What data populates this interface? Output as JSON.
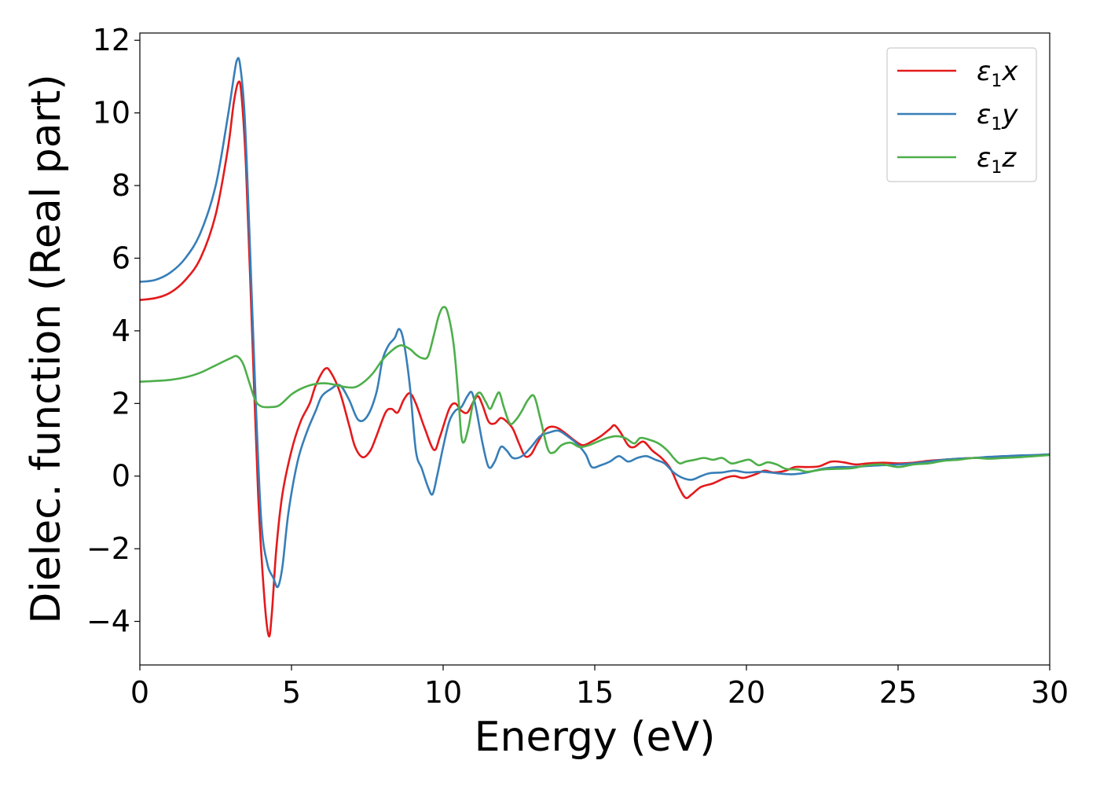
{
  "chart_data": {
    "type": "line",
    "xlabel": "Energy (eV)",
    "ylabel": "Dielec. function (Real part)",
    "xlim": [
      0,
      30
    ],
    "ylim": [
      -5.2,
      12.2
    ],
    "xticks": [
      0,
      5,
      10,
      15,
      20,
      25,
      30
    ],
    "xtick_labels": [
      "0",
      "5",
      "10",
      "15",
      "20",
      "25",
      "30"
    ],
    "yticks": [
      -4,
      -2,
      0,
      2,
      4,
      6,
      8,
      10,
      12
    ],
    "ytick_labels": [
      "−4",
      "−2",
      "0",
      "2",
      "4",
      "6",
      "8",
      "10",
      "12"
    ],
    "grid": false,
    "legend_position": "top-right",
    "series": [
      {
        "name": "ε1x",
        "legend_base": "ε",
        "legend_sub": "1",
        "legend_var": "x",
        "color": "#e41a1c",
        "points": [
          [
            0,
            4.85
          ],
          [
            0.5,
            4.9
          ],
          [
            1,
            5.05
          ],
          [
            1.5,
            5.4
          ],
          [
            2,
            6.0
          ],
          [
            2.5,
            7.2
          ],
          [
            2.9,
            9.0
          ],
          [
            3.1,
            10.3
          ],
          [
            3.25,
            10.85
          ],
          [
            3.35,
            10.5
          ],
          [
            3.5,
            8.5
          ],
          [
            3.7,
            4.0
          ],
          [
            3.9,
            -0.5
          ],
          [
            4.1,
            -3.3
          ],
          [
            4.25,
            -4.4
          ],
          [
            4.35,
            -3.8
          ],
          [
            4.5,
            -2.0
          ],
          [
            4.7,
            -0.5
          ],
          [
            5,
            0.7
          ],
          [
            5.3,
            1.5
          ],
          [
            5.6,
            2.0
          ],
          [
            5.8,
            2.5
          ],
          [
            6.1,
            2.95
          ],
          [
            6.3,
            2.85
          ],
          [
            6.6,
            2.3
          ],
          [
            6.9,
            1.4
          ],
          [
            7.1,
            0.8
          ],
          [
            7.35,
            0.52
          ],
          [
            7.6,
            0.7
          ],
          [
            7.8,
            1.1
          ],
          [
            8.1,
            1.75
          ],
          [
            8.3,
            1.85
          ],
          [
            8.5,
            1.75
          ],
          [
            8.7,
            2.1
          ],
          [
            8.9,
            2.28
          ],
          [
            9.1,
            2.0
          ],
          [
            9.4,
            1.3
          ],
          [
            9.7,
            0.72
          ],
          [
            9.9,
            1.1
          ],
          [
            10.2,
            1.85
          ],
          [
            10.4,
            2.0
          ],
          [
            10.6,
            1.8
          ],
          [
            10.8,
            1.75
          ],
          [
            11.0,
            2.05
          ],
          [
            11.15,
            2.2
          ],
          [
            11.3,
            1.95
          ],
          [
            11.5,
            1.5
          ],
          [
            11.7,
            1.45
          ],
          [
            11.9,
            1.6
          ],
          [
            12.1,
            1.5
          ],
          [
            12.3,
            1.3
          ],
          [
            12.5,
            0.9
          ],
          [
            12.7,
            0.55
          ],
          [
            12.9,
            0.6
          ],
          [
            13.1,
            0.9
          ],
          [
            13.4,
            1.3
          ],
          [
            13.7,
            1.35
          ],
          [
            14.0,
            1.2
          ],
          [
            14.3,
            1.0
          ],
          [
            14.6,
            0.85
          ],
          [
            14.9,
            0.95
          ],
          [
            15.2,
            1.1
          ],
          [
            15.5,
            1.3
          ],
          [
            15.65,
            1.4
          ],
          [
            15.85,
            1.2
          ],
          [
            16.1,
            0.85
          ],
          [
            16.3,
            0.8
          ],
          [
            16.6,
            0.95
          ],
          [
            16.9,
            0.7
          ],
          [
            17.2,
            0.5
          ],
          [
            17.5,
            0.2
          ],
          [
            17.8,
            -0.35
          ],
          [
            18.0,
            -0.6
          ],
          [
            18.2,
            -0.5
          ],
          [
            18.5,
            -0.3
          ],
          [
            18.9,
            -0.2
          ],
          [
            19.3,
            -0.05
          ],
          [
            19.6,
            0.0
          ],
          [
            19.9,
            -0.05
          ],
          [
            20.3,
            0.05
          ],
          [
            20.6,
            0.15
          ],
          [
            20.9,
            0.1
          ],
          [
            21.3,
            0.15
          ],
          [
            21.6,
            0.25
          ],
          [
            22.0,
            0.25
          ],
          [
            22.4,
            0.27
          ],
          [
            22.8,
            0.4
          ],
          [
            23.2,
            0.38
          ],
          [
            23.6,
            0.32
          ],
          [
            24.0,
            0.35
          ],
          [
            24.5,
            0.37
          ],
          [
            25.0,
            0.35
          ],
          [
            25.5,
            0.37
          ],
          [
            26.0,
            0.42
          ],
          [
            26.5,
            0.45
          ],
          [
            27.0,
            0.48
          ],
          [
            27.5,
            0.5
          ],
          [
            28.0,
            0.52
          ],
          [
            28.5,
            0.55
          ],
          [
            29.0,
            0.55
          ],
          [
            29.5,
            0.57
          ],
          [
            30,
            0.6
          ]
        ]
      },
      {
        "name": "ε1y",
        "legend_base": "ε",
        "legend_sub": "1",
        "legend_var": "y",
        "color": "#377eb8",
        "points": [
          [
            0,
            5.35
          ],
          [
            0.5,
            5.4
          ],
          [
            1,
            5.6
          ],
          [
            1.5,
            6.0
          ],
          [
            2,
            6.7
          ],
          [
            2.5,
            8.0
          ],
          [
            2.9,
            9.9
          ],
          [
            3.1,
            11.0
          ],
          [
            3.2,
            11.45
          ],
          [
            3.3,
            11.35
          ],
          [
            3.45,
            10.0
          ],
          [
            3.6,
            7.0
          ],
          [
            3.8,
            2.5
          ],
          [
            4.0,
            -1.2
          ],
          [
            4.2,
            -2.4
          ],
          [
            4.4,
            -2.8
          ],
          [
            4.55,
            -3.05
          ],
          [
            4.7,
            -2.5
          ],
          [
            4.9,
            -1.0
          ],
          [
            5.2,
            0.4
          ],
          [
            5.5,
            1.2
          ],
          [
            5.8,
            1.8
          ],
          [
            6.0,
            2.2
          ],
          [
            6.3,
            2.4
          ],
          [
            6.6,
            2.5
          ],
          [
            6.9,
            2.1
          ],
          [
            7.2,
            1.55
          ],
          [
            7.5,
            1.65
          ],
          [
            7.8,
            2.3
          ],
          [
            8.0,
            3.2
          ],
          [
            8.2,
            3.6
          ],
          [
            8.4,
            3.8
          ],
          [
            8.55,
            4.05
          ],
          [
            8.7,
            3.7
          ],
          [
            8.9,
            2.5
          ],
          [
            9.1,
            0.7
          ],
          [
            9.3,
            0.2
          ],
          [
            9.5,
            -0.3
          ],
          [
            9.65,
            -0.5
          ],
          [
            9.8,
            0.0
          ],
          [
            10.0,
            0.8
          ],
          [
            10.2,
            1.5
          ],
          [
            10.4,
            1.8
          ],
          [
            10.6,
            1.9
          ],
          [
            10.8,
            2.2
          ],
          [
            10.95,
            2.3
          ],
          [
            11.1,
            1.8
          ],
          [
            11.3,
            0.9
          ],
          [
            11.5,
            0.25
          ],
          [
            11.7,
            0.4
          ],
          [
            11.9,
            0.8
          ],
          [
            12.1,
            0.7
          ],
          [
            12.3,
            0.5
          ],
          [
            12.6,
            0.55
          ],
          [
            12.9,
            0.8
          ],
          [
            13.2,
            1.1
          ],
          [
            13.5,
            1.2
          ],
          [
            13.8,
            1.25
          ],
          [
            14.1,
            1.1
          ],
          [
            14.4,
            0.9
          ],
          [
            14.7,
            0.6
          ],
          [
            14.9,
            0.25
          ],
          [
            15.2,
            0.3
          ],
          [
            15.5,
            0.4
          ],
          [
            15.8,
            0.55
          ],
          [
            16.1,
            0.4
          ],
          [
            16.4,
            0.5
          ],
          [
            16.7,
            0.55
          ],
          [
            17.0,
            0.45
          ],
          [
            17.3,
            0.35
          ],
          [
            17.6,
            0.1
          ],
          [
            17.9,
            -0.05
          ],
          [
            18.2,
            -0.1
          ],
          [
            18.5,
            0.0
          ],
          [
            18.8,
            0.08
          ],
          [
            19.2,
            0.1
          ],
          [
            19.6,
            0.15
          ],
          [
            20.0,
            0.1
          ],
          [
            20.5,
            0.12
          ],
          [
            21.0,
            0.08
          ],
          [
            21.5,
            0.05
          ],
          [
            22.0,
            0.1
          ],
          [
            22.5,
            0.2
          ],
          [
            23.0,
            0.25
          ],
          [
            23.5,
            0.25
          ],
          [
            24.0,
            0.28
          ],
          [
            24.5,
            0.3
          ],
          [
            25.0,
            0.32
          ],
          [
            25.5,
            0.35
          ],
          [
            26.0,
            0.4
          ],
          [
            26.5,
            0.45
          ],
          [
            27.0,
            0.48
          ],
          [
            27.5,
            0.5
          ],
          [
            28.0,
            0.53
          ],
          [
            28.5,
            0.55
          ],
          [
            29.0,
            0.57
          ],
          [
            29.5,
            0.58
          ],
          [
            30,
            0.6
          ]
        ]
      },
      {
        "name": "ε1z",
        "legend_base": "ε",
        "legend_sub": "1",
        "legend_var": "z",
        "color": "#4daf4a",
        "points": [
          [
            0,
            2.6
          ],
          [
            0.5,
            2.62
          ],
          [
            1,
            2.65
          ],
          [
            1.5,
            2.72
          ],
          [
            2,
            2.85
          ],
          [
            2.5,
            3.05
          ],
          [
            3.0,
            3.25
          ],
          [
            3.2,
            3.3
          ],
          [
            3.4,
            3.1
          ],
          [
            3.6,
            2.6
          ],
          [
            3.8,
            2.1
          ],
          [
            4.0,
            1.92
          ],
          [
            4.3,
            1.9
          ],
          [
            4.6,
            1.95
          ],
          [
            5.0,
            2.25
          ],
          [
            5.3,
            2.4
          ],
          [
            5.6,
            2.5
          ],
          [
            5.9,
            2.55
          ],
          [
            6.2,
            2.55
          ],
          [
            6.5,
            2.5
          ],
          [
            6.8,
            2.45
          ],
          [
            7.1,
            2.45
          ],
          [
            7.4,
            2.6
          ],
          [
            7.7,
            2.85
          ],
          [
            8.0,
            3.2
          ],
          [
            8.3,
            3.45
          ],
          [
            8.6,
            3.6
          ],
          [
            8.9,
            3.5
          ],
          [
            9.1,
            3.35
          ],
          [
            9.3,
            3.25
          ],
          [
            9.5,
            3.3
          ],
          [
            9.7,
            3.9
          ],
          [
            9.85,
            4.4
          ],
          [
            10.0,
            4.65
          ],
          [
            10.15,
            4.5
          ],
          [
            10.35,
            3.6
          ],
          [
            10.5,
            2.2
          ],
          [
            10.6,
            1.1
          ],
          [
            10.7,
            0.95
          ],
          [
            10.85,
            1.4
          ],
          [
            11.0,
            2.05
          ],
          [
            11.2,
            2.3
          ],
          [
            11.4,
            2.05
          ],
          [
            11.55,
            1.85
          ],
          [
            11.7,
            2.1
          ],
          [
            11.85,
            2.3
          ],
          [
            12.0,
            1.9
          ],
          [
            12.2,
            1.45
          ],
          [
            12.4,
            1.55
          ],
          [
            12.6,
            1.8
          ],
          [
            12.8,
            2.1
          ],
          [
            13.0,
            2.2
          ],
          [
            13.2,
            1.6
          ],
          [
            13.45,
            0.75
          ],
          [
            13.65,
            0.65
          ],
          [
            13.9,
            0.85
          ],
          [
            14.2,
            0.92
          ],
          [
            14.5,
            0.8
          ],
          [
            14.8,
            0.85
          ],
          [
            15.1,
            0.95
          ],
          [
            15.4,
            1.05
          ],
          [
            15.7,
            1.1
          ],
          [
            16.0,
            1.05
          ],
          [
            16.3,
            0.9
          ],
          [
            16.5,
            1.05
          ],
          [
            16.8,
            1.0
          ],
          [
            17.1,
            0.9
          ],
          [
            17.4,
            0.7
          ],
          [
            17.6,
            0.5
          ],
          [
            17.8,
            0.35
          ],
          [
            18.0,
            0.4
          ],
          [
            18.3,
            0.45
          ],
          [
            18.6,
            0.5
          ],
          [
            18.9,
            0.45
          ],
          [
            19.2,
            0.5
          ],
          [
            19.5,
            0.35
          ],
          [
            19.8,
            0.4
          ],
          [
            20.1,
            0.45
          ],
          [
            20.4,
            0.3
          ],
          [
            20.7,
            0.38
          ],
          [
            21.0,
            0.32
          ],
          [
            21.3,
            0.2
          ],
          [
            21.7,
            0.18
          ],
          [
            22.0,
            0.12
          ],
          [
            22.5,
            0.18
          ],
          [
            23.0,
            0.2
          ],
          [
            23.5,
            0.22
          ],
          [
            24.0,
            0.3
          ],
          [
            24.5,
            0.32
          ],
          [
            25.0,
            0.25
          ],
          [
            25.5,
            0.32
          ],
          [
            26.0,
            0.35
          ],
          [
            26.5,
            0.42
          ],
          [
            27.0,
            0.45
          ],
          [
            27.5,
            0.5
          ],
          [
            28.0,
            0.48
          ],
          [
            28.5,
            0.5
          ],
          [
            29.0,
            0.52
          ],
          [
            29.5,
            0.55
          ],
          [
            30,
            0.58
          ]
        ]
      }
    ]
  }
}
